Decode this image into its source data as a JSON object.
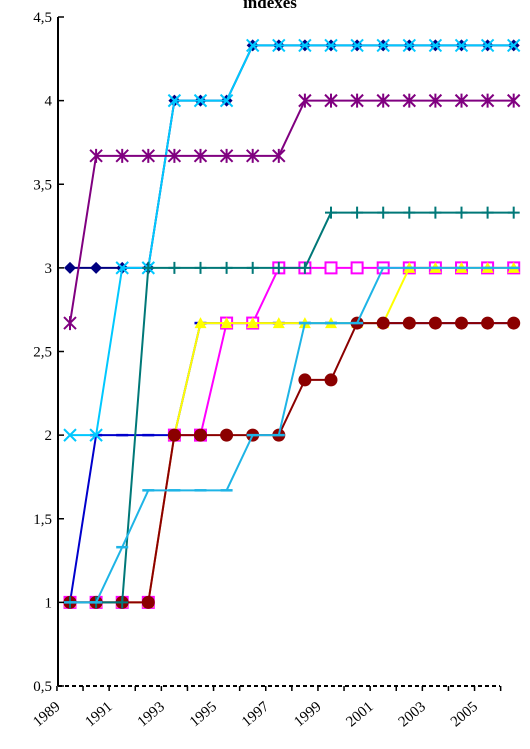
{
  "chart_data": {
    "type": "line",
    "title": "indexes",
    "xlabel": "",
    "ylabel": "",
    "ylim": [
      0.5,
      4.5
    ],
    "yticks": [
      0.5,
      1,
      1.5,
      2,
      2.5,
      3,
      3.5,
      4,
      4.5
    ],
    "ytick_labels": [
      "0,5",
      "1",
      "1,5",
      "2",
      "2,5",
      "3",
      "3,5",
      "4",
      "4,5"
    ],
    "x": [
      1989,
      1990,
      1991,
      1992,
      1993,
      1994,
      1995,
      1996,
      1997,
      1998,
      1999,
      2000,
      2001,
      2002,
      2003,
      2004,
      2005,
      2006
    ],
    "xtick_labels": [
      "1989",
      "1991",
      "1993",
      "1995",
      "1997",
      "1999",
      "2001",
      "2003",
      "2005"
    ],
    "grid": false,
    "series": [
      {
        "color": "#000080",
        "marker": "diamond",
        "values": [
          3,
          3,
          3,
          3,
          4,
          4,
          4,
          4.33,
          4.33,
          4.33,
          4.33,
          4.33,
          4.33,
          4.33,
          4.33,
          4.33,
          4.33,
          4.33
        ]
      },
      {
        "color": "#0000cc",
        "marker": "dash",
        "values": [
          1,
          2,
          2,
          2,
          2,
          2.67,
          2.67,
          2.67,
          2.67,
          2.67,
          2.67,
          2.67,
          2.67,
          2.67,
          2.67,
          2.67,
          2.67,
          2.67
        ]
      },
      {
        "color": "#ff00ff",
        "marker": "square",
        "values": [
          1,
          1,
          1,
          1,
          2,
          2,
          2.67,
          2.67,
          3,
          3,
          3,
          3,
          3,
          3,
          3,
          3,
          3,
          3
        ]
      },
      {
        "color": "#ffff00",
        "marker": "triangle",
        "values": [
          1,
          1,
          1,
          1,
          2,
          2.67,
          2.67,
          2.67,
          2.67,
          2.67,
          2.67,
          2.67,
          2.67,
          3,
          3,
          3,
          3,
          3
        ]
      },
      {
        "color": "#00c8ff",
        "marker": "x",
        "values": [
          2,
          2,
          3,
          3,
          4,
          4,
          4,
          4.33,
          4.33,
          4.33,
          4.33,
          4.33,
          4.33,
          4.33,
          4.33,
          4.33,
          4.33,
          4.33
        ]
      },
      {
        "color": "#800080",
        "marker": "asterisk",
        "values": [
          2.67,
          3.67,
          3.67,
          3.67,
          3.67,
          3.67,
          3.67,
          3.67,
          3.67,
          4,
          4,
          4,
          4,
          4,
          4,
          4,
          4,
          4
        ]
      },
      {
        "color": "#8b0000",
        "marker": "circle",
        "values": [
          1,
          1,
          1,
          1,
          2,
          2,
          2,
          2,
          2,
          2.33,
          2.33,
          2.67,
          2.67,
          2.67,
          2.67,
          2.67,
          2.67,
          2.67
        ]
      },
      {
        "color": "#007878",
        "marker": "plus",
        "values": [
          1,
          1,
          1,
          3,
          3,
          3,
          3,
          3,
          3,
          3,
          3.33,
          3.33,
          3.33,
          3.33,
          3.33,
          3.33,
          3.33,
          3.33
        ]
      },
      {
        "color": "#1eb4e6",
        "marker": "dash",
        "values": [
          1,
          1,
          1.33,
          1.67,
          1.67,
          1.67,
          1.67,
          2,
          2,
          2.67,
          2.67,
          2.67,
          3,
          3,
          3,
          3,
          3,
          3
        ]
      }
    ]
  }
}
